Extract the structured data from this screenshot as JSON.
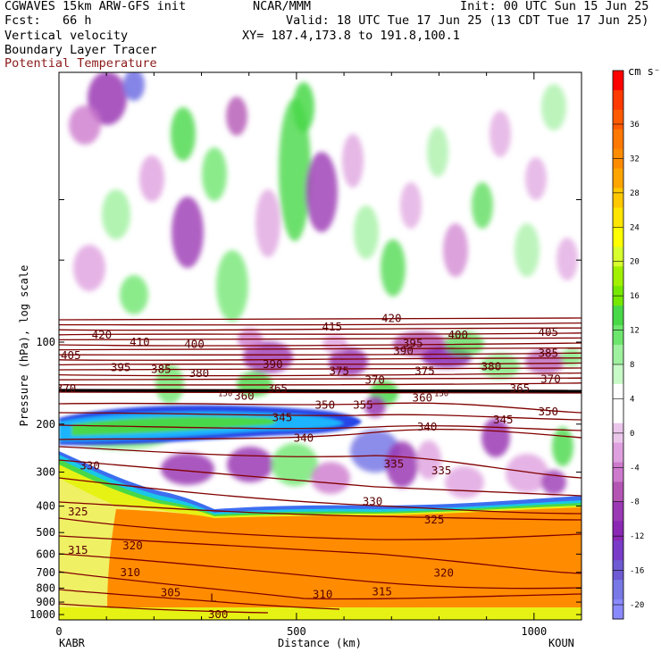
{
  "header": {
    "left_line1": "CGWAVES 15km ARW-GFS init",
    "center_line1": "NCAR/MMM",
    "right_line1": "Init: 00 UTC Sun 15 Jun 25",
    "left_line2": "Fcst:   66 h",
    "right_line2": "Valid: 18 UTC Tue 17 Jun 25 (13 CDT Tue 17 Jun 25)",
    "field1": "Vertical velocity",
    "field2": "Boundary Layer Tracer",
    "field3": "Potential Temperature",
    "xy_line": "XY= 187.4,173.8 to 191.8,100.1"
  },
  "colors": {
    "theta_contour": "#800000",
    "orange": "#ff8c00",
    "header_red": "#8b1a1a"
  },
  "chart_data": {
    "type": "heatmap",
    "xlabel": "Distance (km)",
    "ylabel": "Pressure (hPa), log scale",
    "x_ticks": [
      0,
      500,
      1000
    ],
    "x_range": [
      0,
      1100
    ],
    "y_ticks": [
      100,
      200,
      300,
      400,
      500,
      600,
      700,
      800,
      900,
      1000
    ],
    "y_scale": "log",
    "left_station": "KABR",
    "right_station": "KOUN",
    "colorbar": {
      "unit": "cm s⁻¹",
      "ticks": [
        36,
        32,
        28,
        24,
        20,
        16,
        12,
        8,
        4,
        0,
        -4,
        -8,
        -12,
        -16,
        -20
      ],
      "colors": [
        "#ff0000",
        "#ff3a00",
        "#ff5a00",
        "#ff7800",
        "#ff8c00",
        "#ffa500",
        "#ffc800",
        "#ffe500",
        "#ffff00",
        "#d7ff2d",
        "#a0f000",
        "#76e800",
        "#48d848",
        "#6ee66e",
        "#9ff09f",
        "#c8fac8",
        "#ffffff",
        "#ffffff",
        "#ebc6eb",
        "#dea0de",
        "#cd7acd",
        "#b455b4",
        "#9b38b4",
        "#8a28b4",
        "#7a3cc8",
        "#6e5ad2",
        "#7878e6",
        "#8a8aff"
      ]
    },
    "theta_labels": [
      {
        "v": "420",
        "x": 90,
        "p": 94
      },
      {
        "v": "410",
        "x": 170,
        "p": 100
      },
      {
        "v": "400",
        "x": 285,
        "p": 102
      },
      {
        "v": "415",
        "x": 575,
        "p": 88
      },
      {
        "v": "420",
        "x": 700,
        "p": 82
      },
      {
        "v": "395",
        "x": 745,
        "p": 101
      },
      {
        "v": "400",
        "x": 840,
        "p": 94
      },
      {
        "v": "405",
        "x": 1030,
        "p": 92
      },
      {
        "v": "385",
        "x": 1030,
        "p": 110
      },
      {
        "v": "390",
        "x": 725,
        "p": 108
      },
      {
        "v": "380",
        "x": 910,
        "p": 123
      },
      {
        "v": "370",
        "x": 1035,
        "p": 137
      },
      {
        "v": "405",
        "x": 25,
        "p": 112
      },
      {
        "v": "395",
        "x": 130,
        "p": 124
      },
      {
        "v": "385",
        "x": 215,
        "p": 126
      },
      {
        "v": "380",
        "x": 295,
        "p": 130
      },
      {
        "v": "390",
        "x": 450,
        "p": 121
      },
      {
        "v": "375",
        "x": 590,
        "p": 128
      },
      {
        "v": "375",
        "x": 770,
        "p": 128
      },
      {
        "v": "370",
        "x": 665,
        "p": 138
      },
      {
        "v": "365",
        "x": 970,
        "p": 148
      },
      {
        "v": "370",
        "x": 15,
        "p": 148
      },
      {
        "v": "360",
        "x": 390,
        "p": 158
      },
      {
        "v": "365",
        "x": 460,
        "p": 148
      },
      {
        "v": "350",
        "x": 560,
        "p": 170
      },
      {
        "v": "355",
        "x": 640,
        "p": 170
      },
      {
        "v": "360",
        "x": 765,
        "p": 160
      },
      {
        "v": "350",
        "x": 1030,
        "p": 180
      },
      {
        "v": "345",
        "x": 470,
        "p": 189
      },
      {
        "v": "345",
        "x": 935,
        "p": 193
      },
      {
        "v": "340",
        "x": 515,
        "p": 225
      },
      {
        "v": "340",
        "x": 775,
        "p": 205
      },
      {
        "v": "335",
        "x": 705,
        "p": 280
      },
      {
        "v": "335",
        "x": 805,
        "p": 297
      },
      {
        "v": "330",
        "x": 65,
        "p": 285
      },
      {
        "v": "330",
        "x": 660,
        "p": 385
      },
      {
        "v": "325",
        "x": 40,
        "p": 420
      },
      {
        "v": "325",
        "x": 790,
        "p": 450
      },
      {
        "v": "320",
        "x": 155,
        "p": 560
      },
      {
        "v": "320",
        "x": 810,
        "p": 705
      },
      {
        "v": "315",
        "x": 40,
        "p": 580
      },
      {
        "v": "315",
        "x": 680,
        "p": 825
      },
      {
        "v": "310",
        "x": 150,
        "p": 700
      },
      {
        "v": "310",
        "x": 555,
        "p": 845
      },
      {
        "v": "305",
        "x": 235,
        "p": 830
      },
      {
        "v": "300",
        "x": 335,
        "p": 1000
      }
    ],
    "low_label": {
      "v": "L",
      "x": 325,
      "p": 870
    },
    "tracer_label": {
      "v": "150",
      "x": 350,
      "p": 153
    },
    "tracer_label2": {
      "v": "150",
      "x": 805,
      "p": 153
    }
  }
}
